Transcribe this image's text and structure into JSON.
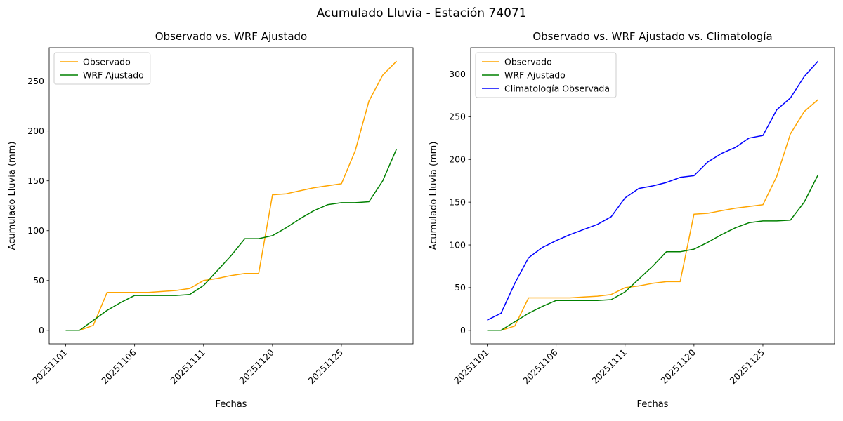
{
  "figure": {
    "title": "Acumulado Lluvia - Estación 74071"
  },
  "chart_data": [
    {
      "type": "line",
      "title": "Observado vs. WRF Ajustado",
      "xlabel": "Fechas",
      "ylabel": "Acumulado Lluvia (mm)",
      "grid": false,
      "legend_position": "upper left",
      "x": [
        "20251101",
        "20251102",
        "20251103",
        "20251104",
        "20251105",
        "20251106",
        "20251107",
        "20251108",
        "20251109",
        "20251110",
        "20251111",
        "20251116",
        "20251117",
        "20251118",
        "20251119",
        "20251120",
        "20251121",
        "20251122",
        "20251123",
        "20251124",
        "20251125",
        "20251126",
        "20251127",
        "20251128",
        "20251129"
      ],
      "x_tick_indices": [
        0,
        5,
        10,
        15,
        20
      ],
      "x_ticklabels": [
        "20251101",
        "20251106",
        "20251111",
        "20251120",
        "20251125"
      ],
      "yticks": [
        0,
        50,
        100,
        150,
        200,
        250
      ],
      "ylim": [
        -13.5,
        283.5
      ],
      "series": [
        {
          "name": "Observado",
          "color": "#ffa500",
          "values": [
            0,
            0,
            5,
            38,
            38,
            38,
            38,
            39,
            40,
            42,
            50,
            52,
            55,
            57,
            57,
            136,
            137,
            140,
            143,
            145,
            147,
            180,
            230,
            256,
            270
          ]
        },
        {
          "name": "WRF Ajustado",
          "color": "#008000",
          "values": [
            0,
            0,
            10,
            20,
            28,
            35,
            35,
            35,
            35,
            36,
            45,
            60,
            75,
            92,
            92,
            95,
            103,
            112,
            120,
            126,
            128,
            128,
            129,
            150,
            182
          ]
        }
      ]
    },
    {
      "type": "line",
      "title": "Observado vs. WRF Ajustado vs. Climatología",
      "xlabel": "Fechas",
      "ylabel": "Acumulado Lluvia (mm)",
      "grid": false,
      "legend_position": "upper left",
      "x": [
        "20251101",
        "20251102",
        "20251103",
        "20251104",
        "20251105",
        "20251106",
        "20251107",
        "20251108",
        "20251109",
        "20251110",
        "20251111",
        "20251116",
        "20251117",
        "20251118",
        "20251119",
        "20251120",
        "20251121",
        "20251122",
        "20251123",
        "20251124",
        "20251125",
        "20251126",
        "20251127",
        "20251128",
        "20251129"
      ],
      "x_tick_indices": [
        0,
        5,
        10,
        15,
        20
      ],
      "x_ticklabels": [
        "20251101",
        "20251106",
        "20251111",
        "20251120",
        "20251125"
      ],
      "yticks": [
        0,
        50,
        100,
        150,
        200,
        250,
        300
      ],
      "ylim": [
        -15.75,
        330.75
      ],
      "series": [
        {
          "name": "Observado",
          "color": "#ffa500",
          "values": [
            0,
            0,
            5,
            38,
            38,
            38,
            38,
            39,
            40,
            42,
            50,
            52,
            55,
            57,
            57,
            136,
            137,
            140,
            143,
            145,
            147,
            180,
            230,
            256,
            270
          ]
        },
        {
          "name": "WRF Ajustado",
          "color": "#008000",
          "values": [
            0,
            0,
            10,
            20,
            28,
            35,
            35,
            35,
            35,
            36,
            45,
            60,
            75,
            92,
            92,
            95,
            103,
            112,
            120,
            126,
            128,
            128,
            129,
            150,
            182
          ]
        },
        {
          "name": "Climatología Observada",
          "color": "#0000ff",
          "values": [
            12,
            20,
            55,
            85,
            97,
            105,
            112,
            118,
            124,
            133,
            155,
            166,
            169,
            173,
            179,
            181,
            197,
            207,
            214,
            225,
            228,
            258,
            272,
            297,
            315
          ]
        }
      ]
    }
  ]
}
